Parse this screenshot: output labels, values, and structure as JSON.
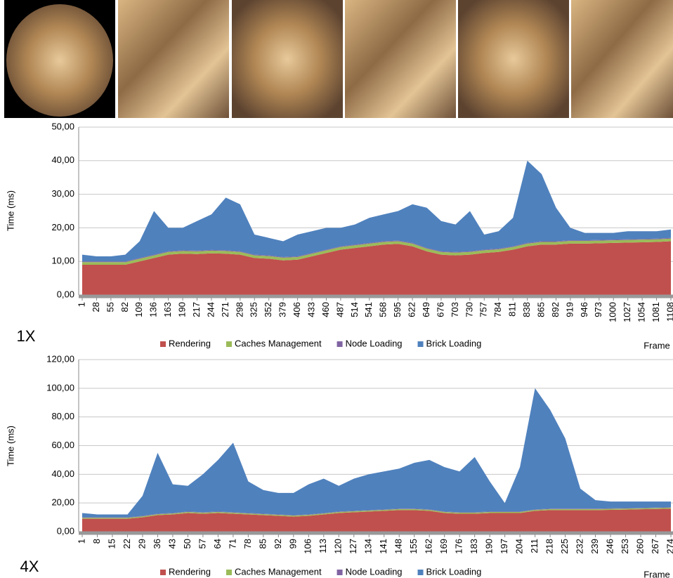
{
  "chart_data": [
    {
      "type": "area",
      "stacked": true,
      "annotation": "1X",
      "x_label": "Frame",
      "y_label": "Time (ms)",
      "categories": [
        "1",
        "28",
        "55",
        "82",
        "109",
        "136",
        "163",
        "190",
        "217",
        "244",
        "271",
        "298",
        "325",
        "352",
        "379",
        "406",
        "433",
        "460",
        "487",
        "514",
        "541",
        "568",
        "595",
        "622",
        "649",
        "676",
        "703",
        "730",
        "757",
        "784",
        "811",
        "838",
        "865",
        "892",
        "919",
        "946",
        "973",
        "1000",
        "1027",
        "1054",
        "1081",
        "1108"
      ],
      "series": [
        {
          "name": "Rendering",
          "color": "#c0504d",
          "values": [
            9,
            9,
            9,
            9,
            10,
            11,
            12,
            12.3,
            12.2,
            12.4,
            12.3,
            12,
            11,
            10.8,
            10.3,
            10.5,
            11.5,
            12.5,
            13.5,
            14,
            14.5,
            15,
            15.2,
            14.5,
            13,
            12,
            11.8,
            12,
            12.5,
            12.8,
            13.5,
            14.5,
            15,
            15,
            15.3,
            15.3,
            15.4,
            15.5,
            15.6,
            15.7,
            15.8,
            16
          ]
        },
        {
          "name": "Caches Management",
          "color": "#9bbb59",
          "values": [
            0.8,
            0.8,
            0.8,
            0.8,
            0.8,
            0.8,
            0.8,
            0.8,
            0.8,
            0.8,
            0.8,
            0.8,
            0.8,
            0.8,
            0.8,
            0.8,
            0.8,
            0.8,
            0.8,
            0.8,
            0.8,
            0.8,
            0.8,
            0.8,
            0.8,
            0.8,
            0.8,
            0.8,
            0.8,
            0.8,
            0.8,
            0.8,
            0.8,
            0.8,
            0.8,
            0.8,
            0.8,
            0.8,
            0.8,
            0.8,
            0.8,
            0.8
          ]
        },
        {
          "name": "Node Loading",
          "color": "#8064a2",
          "values": [
            0.2,
            0.2,
            0.2,
            0.2,
            0.2,
            0.2,
            0.2,
            0.2,
            0.2,
            0.2,
            0.2,
            0.2,
            0.2,
            0.2,
            0.2,
            0.2,
            0.2,
            0.2,
            0.2,
            0.2,
            0.2,
            0.2,
            0.2,
            0.2,
            0.2,
            0.2,
            0.2,
            0.2,
            0.2,
            0.2,
            0.2,
            0.2,
            0.2,
            0.2,
            0.2,
            0.2,
            0.2,
            0.2,
            0.2,
            0.2,
            0.2,
            0.2
          ]
        },
        {
          "name": "Brick Loading",
          "color": "#4f81bd",
          "values": [
            2,
            1.5,
            1.5,
            2,
            5,
            13,
            7,
            6.7,
            8.8,
            10.6,
            15.7,
            14,
            6,
            5.2,
            4.7,
            6.5,
            6.5,
            6.5,
            5.5,
            6,
            7.5,
            8,
            8.8,
            11.5,
            12,
            9,
            8.2,
            12,
            4.5,
            5.2,
            8.5,
            24.5,
            20,
            10,
            3.7,
            2.2,
            2.1,
            2,
            2.4,
            2.3,
            2.2,
            2.5
          ]
        }
      ],
      "ylim": [
        0,
        50
      ],
      "yticks": [
        {
          "value": 0,
          "label": "0,00"
        },
        {
          "value": 10,
          "label": "10,00"
        },
        {
          "value": 20,
          "label": "20,00"
        },
        {
          "value": 30,
          "label": "30,00"
        },
        {
          "value": 40,
          "label": "40,00"
        },
        {
          "value": 50,
          "label": "50,00"
        }
      ],
      "grid": true,
      "legend": "bottom"
    },
    {
      "type": "area",
      "stacked": true,
      "annotation": "4X",
      "x_label": "Frame",
      "y_label": "Time (ms)",
      "categories": [
        "1",
        "8",
        "15",
        "22",
        "29",
        "36",
        "43",
        "50",
        "57",
        "64",
        "71",
        "78",
        "85",
        "92",
        "99",
        "106",
        "113",
        "120",
        "127",
        "134",
        "141",
        "148",
        "155",
        "162",
        "169",
        "176",
        "183",
        "190",
        "197",
        "204",
        "211",
        "218",
        "225",
        "232",
        "239",
        "246",
        "253",
        "260",
        "267",
        "274"
      ],
      "series": [
        {
          "name": "Rendering",
          "color": "#c0504d",
          "values": [
            9,
            9,
            9,
            9,
            10,
            11.5,
            12,
            13,
            12.5,
            13,
            12.5,
            12,
            11.5,
            11,
            10.5,
            11,
            12,
            13,
            13.5,
            14,
            14.5,
            15,
            15,
            14.5,
            13,
            12.5,
            12.5,
            13,
            13,
            13,
            14.5,
            15,
            15,
            15,
            15,
            15.2,
            15.4,
            15.6,
            15.8,
            16
          ]
        },
        {
          "name": "Caches Management",
          "color": "#9bbb59",
          "values": [
            0.7,
            0.7,
            0.7,
            0.7,
            0.7,
            0.7,
            0.7,
            0.7,
            0.7,
            0.7,
            0.7,
            0.7,
            0.7,
            0.7,
            0.7,
            0.7,
            0.7,
            0.7,
            0.7,
            0.7,
            0.7,
            0.7,
            0.7,
            0.7,
            0.7,
            0.7,
            0.7,
            0.7,
            0.7,
            0.7,
            0.7,
            0.7,
            0.7,
            0.7,
            0.7,
            0.7,
            0.7,
            0.7,
            0.7,
            0.7
          ]
        },
        {
          "name": "Node Loading",
          "color": "#8064a2",
          "values": [
            0.3,
            0.3,
            0.3,
            0.3,
            0.3,
            0.3,
            0.3,
            0.3,
            0.3,
            0.3,
            0.3,
            0.3,
            0.3,
            0.3,
            0.3,
            0.3,
            0.3,
            0.3,
            0.3,
            0.3,
            0.3,
            0.3,
            0.3,
            0.3,
            0.3,
            0.3,
            0.3,
            0.3,
            0.3,
            0.3,
            0.3,
            0.3,
            0.3,
            0.3,
            0.3,
            0.3,
            0.3,
            0.3,
            0.3,
            0.3
          ]
        },
        {
          "name": "Brick Loading",
          "color": "#4f81bd",
          "values": [
            3,
            2,
            2,
            2,
            14,
            42.5,
            20,
            18,
            26.5,
            36,
            48.5,
            22,
            16.5,
            15,
            15.5,
            21,
            24,
            18,
            22.5,
            25,
            26.5,
            28,
            32,
            34.5,
            31,
            28.5,
            38.5,
            21,
            6,
            31,
            84.5,
            69,
            49,
            14,
            6,
            4.8,
            4.6,
            4.4,
            4.2,
            4
          ]
        }
      ],
      "ylim": [
        0,
        120
      ],
      "yticks": [
        {
          "value": 0,
          "label": "0,00"
        },
        {
          "value": 20,
          "label": "20,00"
        },
        {
          "value": 40,
          "label": "40,00"
        },
        {
          "value": 60,
          "label": "60,00"
        },
        {
          "value": 80,
          "label": "80,00"
        },
        {
          "value": 100,
          "label": "100,00"
        },
        {
          "value": 120,
          "label": "120,00"
        }
      ],
      "grid": true,
      "legend": "bottom"
    }
  ]
}
